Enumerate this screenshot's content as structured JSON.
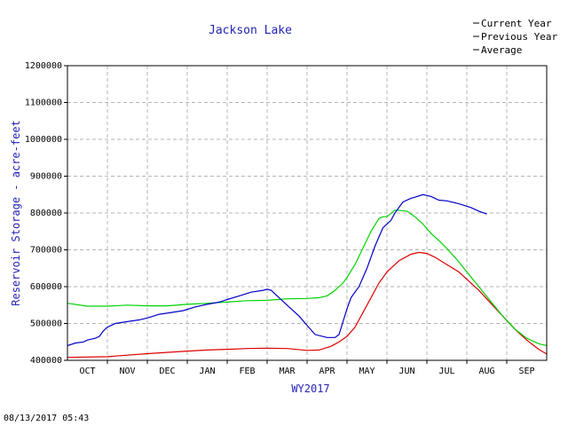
{
  "chart_data": {
    "type": "line",
    "title": "Jackson Lake",
    "xlabel": "WY2017",
    "ylabel": "Reservoir Storage - acre-feet",
    "categories": [
      "OCT",
      "NOV",
      "DEC",
      "JAN",
      "FEB",
      "MAR",
      "APR",
      "MAY",
      "JUN",
      "JUL",
      "AUG",
      "SEP"
    ],
    "y_ticks": [
      "400000",
      "500000",
      "600000",
      "700000",
      "800000",
      "900000",
      "1000000",
      "1100000",
      "1200000"
    ],
    "ylim": [
      400000,
      1200000
    ],
    "xlim": [
      0,
      12
    ],
    "grid": true,
    "legend_position": "top-right",
    "timestamp": "08/13/2017 05:43",
    "colors": {
      "current": "#0000c8",
      "previous": "#00d200",
      "average": "#dc0000",
      "axis_text": "#2323b4"
    },
    "series": [
      {
        "key": "current",
        "name": "Current Year",
        "color": "#0000c8",
        "x": [
          0,
          0.2,
          0.4,
          0.5,
          0.7,
          0.8,
          0.9,
          1.0,
          1.2,
          1.5,
          1.8,
          2.0,
          2.3,
          2.6,
          2.9,
          3.2,
          3.5,
          3.8,
          4.0,
          4.3,
          4.6,
          4.9,
          5.0,
          5.1,
          5.2,
          5.5,
          5.8,
          6.0,
          6.2,
          6.5,
          6.7,
          6.8,
          7.0,
          7.1,
          7.3,
          7.5,
          7.7,
          7.9,
          8.1,
          8.2,
          8.4,
          8.6,
          8.7,
          8.9,
          9.1,
          9.3,
          9.5,
          9.8,
          10.1,
          10.3,
          10.5
        ],
        "y": [
          440000,
          447000,
          450000,
          455000,
          460000,
          465000,
          480000,
          490000,
          500000,
          505000,
          510000,
          515000,
          525000,
          530000,
          535000,
          545000,
          552000,
          558000,
          565000,
          575000,
          585000,
          590000,
          593000,
          590000,
          580000,
          550000,
          520000,
          495000,
          470000,
          462000,
          462000,
          470000,
          540000,
          570000,
          600000,
          650000,
          710000,
          760000,
          780000,
          800000,
          830000,
          840000,
          843000,
          850000,
          845000,
          835000,
          833000,
          825000,
          815000,
          805000,
          797000
        ]
      },
      {
        "key": "previous",
        "name": "Previous Year",
        "color": "#00d200",
        "x": [
          0,
          0.5,
          1.0,
          1.5,
          2.0,
          2.5,
          3.0,
          3.5,
          4.0,
          4.5,
          5.0,
          5.5,
          6.0,
          6.3,
          6.5,
          6.7,
          6.9,
          7.0,
          7.2,
          7.4,
          7.6,
          7.8,
          7.9,
          8.0,
          8.2,
          8.5,
          8.7,
          8.9,
          9.1,
          9.4,
          9.7,
          10.0,
          10.3,
          10.6,
          10.9,
          11.2,
          11.5,
          11.8,
          12.0
        ],
        "y": [
          555000,
          547000,
          547000,
          550000,
          548000,
          548000,
          552000,
          555000,
          558000,
          562000,
          563000,
          567000,
          568000,
          570000,
          575000,
          590000,
          610000,
          625000,
          660000,
          705000,
          750000,
          785000,
          790000,
          790000,
          808000,
          805000,
          790000,
          770000,
          745000,
          715000,
          680000,
          640000,
          600000,
          560000,
          520000,
          485000,
          460000,
          445000,
          440000
        ]
      },
      {
        "key": "average",
        "name": "Average",
        "color": "#dc0000",
        "x": [
          0,
          1.0,
          2.0,
          3.0,
          3.5,
          4.0,
          4.5,
          5.0,
          5.5,
          6.0,
          6.3,
          6.6,
          6.8,
          7.0,
          7.2,
          7.5,
          7.8,
          8.0,
          8.3,
          8.6,
          8.8,
          9.0,
          9.2,
          9.5,
          9.8,
          10.0,
          10.3,
          10.6,
          10.9,
          11.2,
          11.5,
          11.8,
          12.0
        ],
        "y": [
          408000,
          410000,
          418000,
          425000,
          428000,
          430000,
          432000,
          433000,
          432000,
          427000,
          428000,
          438000,
          450000,
          465000,
          490000,
          550000,
          610000,
          640000,
          670000,
          688000,
          693000,
          690000,
          680000,
          660000,
          640000,
          620000,
          590000,
          555000,
          520000,
          485000,
          455000,
          430000,
          417000
        ]
      }
    ]
  }
}
